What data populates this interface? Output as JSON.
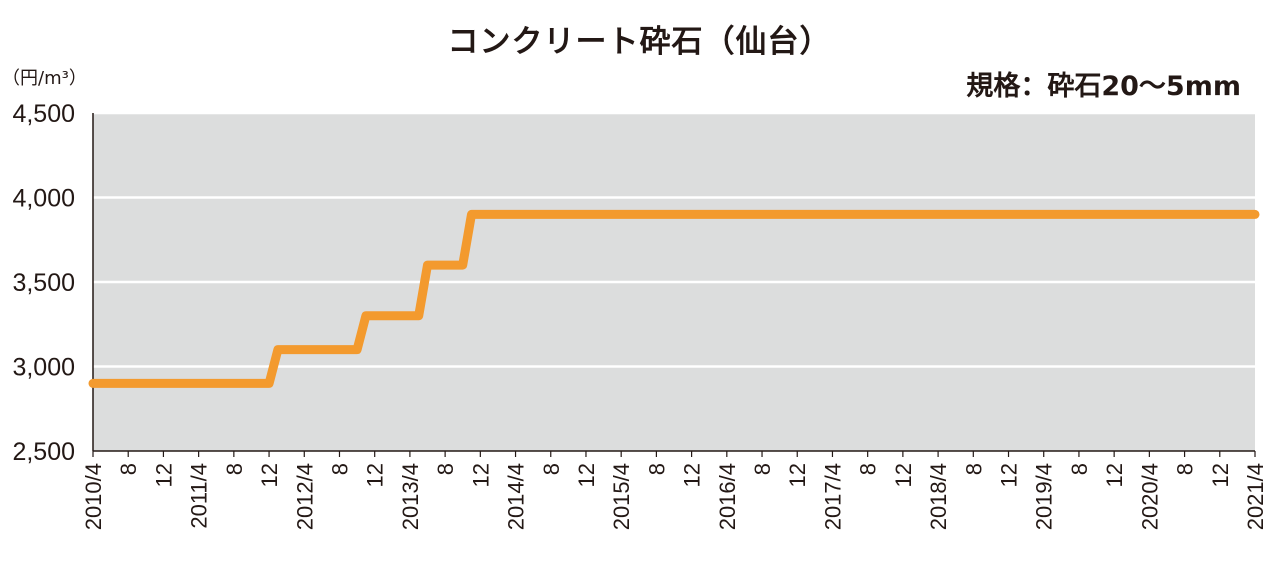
{
  "chart_data": {
    "type": "line",
    "title": "コンクリート砕石（仙台）",
    "subtitle": "規格：砕石20〜5mm",
    "unit": "（円/m³）",
    "ylim": [
      2500,
      4500
    ],
    "y_ticks": [
      "2,500",
      "3,000",
      "3,500",
      "4,000",
      "4,500"
    ],
    "y_tick_values": [
      2500,
      3000,
      3500,
      4000,
      4500
    ],
    "x_tick_labels": [
      "2010/4",
      "8",
      "12",
      "2011/4",
      "8",
      "12",
      "2012/4",
      "8",
      "12",
      "2013/4",
      "8",
      "12",
      "2014/4",
      "8",
      "12",
      "2015/4",
      "8",
      "12",
      "2016/4",
      "8",
      "12",
      "2017/4",
      "8",
      "12",
      "2018/4",
      "8",
      "12",
      "2019/4",
      "8",
      "12",
      "2020/4",
      "8",
      "12",
      "2021/4"
    ],
    "grid": true,
    "series": [
      {
        "color": "#F39A2E",
        "points": [
          {
            "x": "2010/4",
            "y": 2900
          },
          {
            "x": "2011/12",
            "y": 2900
          },
          {
            "x": "2012/1",
            "y": 3100
          },
          {
            "x": "2012/10",
            "y": 3100
          },
          {
            "x": "2012/11",
            "y": 3300
          },
          {
            "x": "2013/5",
            "y": 3300
          },
          {
            "x": "2013/6",
            "y": 3600
          },
          {
            "x": "2013/10",
            "y": 3600
          },
          {
            "x": "2013/11",
            "y": 3900
          },
          {
            "x": "2021/4",
            "y": 3900
          }
        ]
      }
    ]
  },
  "colors": {
    "plot_background": "#DCDDDD",
    "gridline": "#FFFFFF",
    "axis": "#231815",
    "line": "#F39A2E"
  }
}
